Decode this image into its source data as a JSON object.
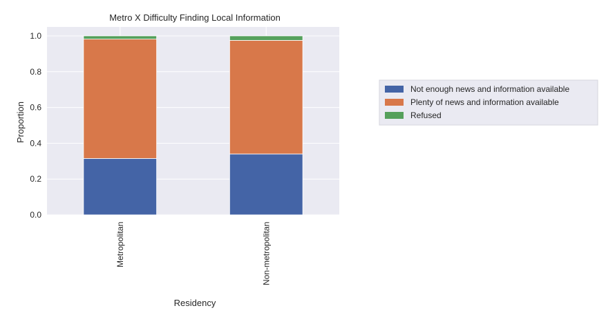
{
  "chart_data": {
    "type": "bar",
    "stacked": true,
    "title": "Metro X Difficulty Finding Local Information",
    "xlabel": "Residency",
    "ylabel": "Proportion",
    "categories": [
      "Metropolitan",
      "Non-metropolitan"
    ],
    "ylim": [
      0,
      1.05
    ],
    "yticks": [
      "0.0",
      "0.2",
      "0.4",
      "0.6",
      "0.8",
      "1.0"
    ],
    "grid": true,
    "legend_position": "right",
    "series": [
      {
        "name": "Not enough news and information available",
        "color": "#4464a6",
        "values": [
          0.315,
          0.34
        ]
      },
      {
        "name": "Plenty of news and information available",
        "color": "#d8784a",
        "values": [
          0.667,
          0.635
        ]
      },
      {
        "name": "Refused",
        "color": "#55a05b",
        "values": [
          0.018,
          0.025
        ]
      }
    ]
  }
}
